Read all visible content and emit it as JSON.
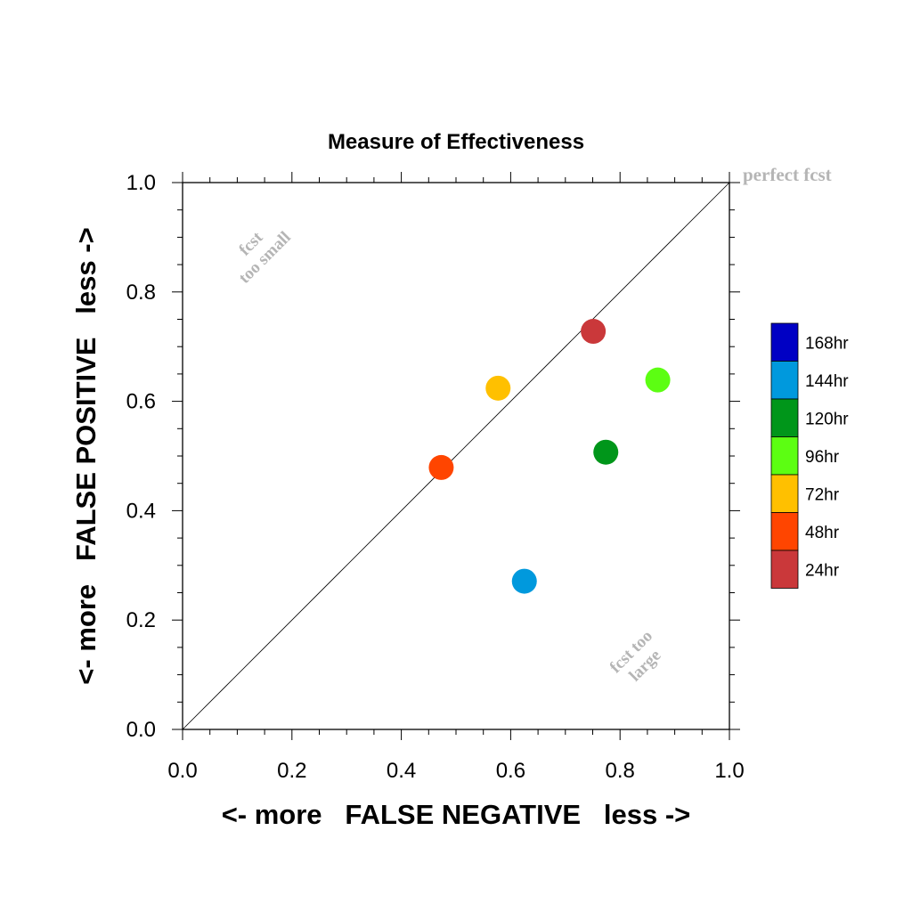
{
  "chart_data": {
    "type": "scatter",
    "title": "Measure of Effectiveness",
    "xlabel": "<- more   FALSE NEGATIVE   less ->",
    "ylabel": "<- more   FALSE POSITIVE   less ->",
    "xlim": [
      0,
      1
    ],
    "ylim": [
      0,
      1
    ],
    "x_ticks": [
      "0.0",
      "0.2",
      "0.4",
      "0.6",
      "0.8",
      "1.0"
    ],
    "y_ticks": [
      "0.0",
      "0.2",
      "0.4",
      "0.6",
      "0.8",
      "1.0"
    ],
    "grid": false,
    "legend_position": "right",
    "reference_line": "diagonal",
    "annotations": {
      "perfect": "perfect fcst",
      "too_small_1": "fcst",
      "too_small_2": "too small",
      "too_large_1": "fcst too",
      "too_large_2": "large"
    },
    "series": [
      {
        "name": "168hr",
        "color": "#0000c4",
        "points": []
      },
      {
        "name": "144hr",
        "color": "#0099dd",
        "points": [
          [
            0.625,
            0.271
          ]
        ]
      },
      {
        "name": "120hr",
        "color": "#00961a",
        "points": [
          [
            0.774,
            0.507
          ]
        ]
      },
      {
        "name": "96hr",
        "color": "#5cfe12",
        "points": [
          [
            0.869,
            0.639
          ]
        ]
      },
      {
        "name": "72hr",
        "color": "#ffc000",
        "points": [
          [
            0.577,
            0.624
          ]
        ]
      },
      {
        "name": "48hr",
        "color": "#ff4500",
        "points": [
          [
            0.473,
            0.479
          ]
        ]
      },
      {
        "name": "24hr",
        "color": "#ca383a",
        "points": [
          [
            0.751,
            0.728
          ]
        ]
      }
    ]
  }
}
